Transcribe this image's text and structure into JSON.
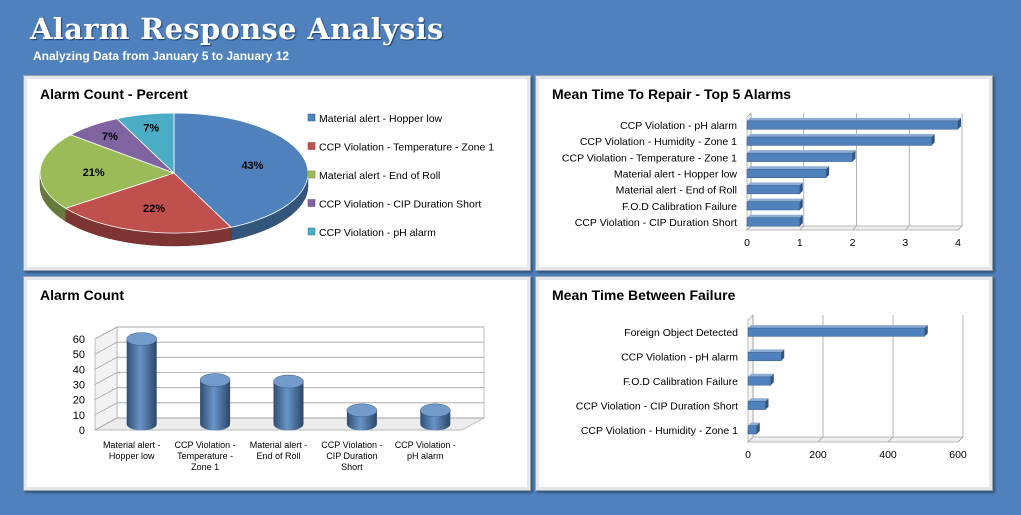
{
  "header": {
    "title": "Alarm Response Analysis",
    "subtitle": "Analyzing Data from January 5 to January 12"
  },
  "chart_data": [
    {
      "type": "pie",
      "title": "Alarm Count - Percent",
      "categories": [
        "Material alert - Hopper low",
        "CCP Violation  - Temperature - Zone 1",
        "Material alert - End of Roll",
        "CCP Violation - CIP Duration Short",
        "CCP Violation - pH alarm"
      ],
      "values": [
        43,
        22,
        21,
        7,
        7
      ],
      "labels": [
        "43%",
        "22%",
        "21%",
        "7%",
        "7%"
      ],
      "colors": [
        "#4f81bd",
        "#c0504d",
        "#9bbb59",
        "#8064a2",
        "#4bacc6"
      ],
      "legend_position": "right"
    },
    {
      "type": "bar",
      "orientation": "horizontal",
      "title": "Mean Time To Repair - Top 5 Alarms",
      "categories": [
        "CCP Violation - pH alarm",
        "CCP Violation - Humidity - Zone 1",
        "CCP Violation  - Temperature - Zone 1",
        "Material alert - Hopper low",
        "Material alert - End of Roll",
        "F.O.D Calibration Failure",
        "CCP Violation - CIP Duration Short"
      ],
      "values": [
        4.0,
        3.5,
        2.0,
        1.5,
        1.0,
        1.0,
        1.0
      ],
      "xlim": [
        0,
        4
      ],
      "ticks": [
        "0",
        "1",
        "2",
        "3",
        "4"
      ],
      "grid": true,
      "color": "#4f81bd"
    },
    {
      "type": "bar",
      "style": "3d-cylinder",
      "title": "Alarm Count",
      "categories": [
        "Material alert - Hopper low",
        "CCP Violation - Temperature - Zone 1",
        "Material alert - End of Roll",
        "CCP Violation - CIP Duration Short",
        "CCP Violation - pH alarm"
      ],
      "category_lines": [
        [
          "Material alert -",
          "Hopper low"
        ],
        [
          "CCP Violation -",
          "Temperature -",
          "Zone 1"
        ],
        [
          "Material alert -",
          "End of Roll"
        ],
        [
          "CCP Violation -",
          "CIP Duration",
          "Short"
        ],
        [
          "CCP Violation -",
          "pH alarm"
        ]
      ],
      "values": [
        56,
        29,
        28,
        9,
        9
      ],
      "ylim": [
        0,
        60
      ],
      "ticks": [
        "0",
        "10",
        "20",
        "30",
        "40",
        "50",
        "60"
      ],
      "grid": true,
      "color": "#4f81bd"
    },
    {
      "type": "bar",
      "orientation": "horizontal",
      "title": "Mean Time Between Failure",
      "categories": [
        "Foreign Object Detected",
        "CCP Violation - pH alarm",
        "F.O.D Calibration Failure",
        "CCP Violation - CIP Duration Short",
        "CCP Violation - Humidity - Zone 1"
      ],
      "values": [
        505,
        95,
        65,
        50,
        25
      ],
      "xlim": [
        0,
        600
      ],
      "ticks": [
        "0",
        "200",
        "400",
        "600"
      ],
      "grid": true,
      "color": "#4f81bd"
    }
  ]
}
